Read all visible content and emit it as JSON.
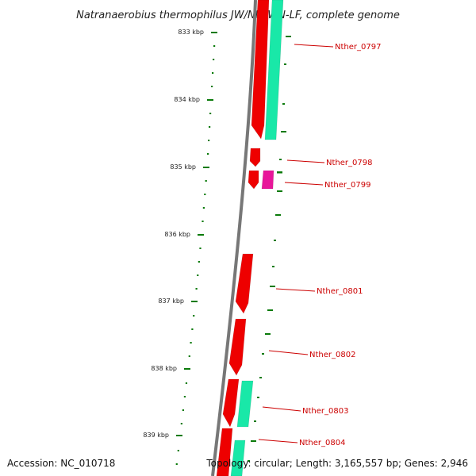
{
  "title": "Natranaerobius thermophilus JW/NM-WN-LF, complete genome",
  "footer": {
    "accession": "Accession: NC_010718",
    "summary": "Topology: circular; Length: 3,165,557 bp; Genes: 2,946"
  },
  "ruler_ticks": [
    "833 kbp",
    "834 kbp",
    "835 kbp",
    "836 kbp",
    "837 kbp",
    "838 kbp",
    "839 kbp"
  ],
  "genes": [
    {
      "label": "Nther_0797"
    },
    {
      "label": "Nther_0798"
    },
    {
      "label": "Nther_0799"
    },
    {
      "label": "Nther_0801"
    },
    {
      "label": "Nther_0802"
    },
    {
      "label": "Nther_0803"
    },
    {
      "label": "Nther_0804"
    }
  ],
  "colors": {
    "cds": "#ee0000",
    "cds_alt": "#e8169a",
    "rna_feature": "#19e8a8",
    "tick": "#0a7a0a",
    "label": "#cc0000",
    "backbone": "#777777"
  }
}
